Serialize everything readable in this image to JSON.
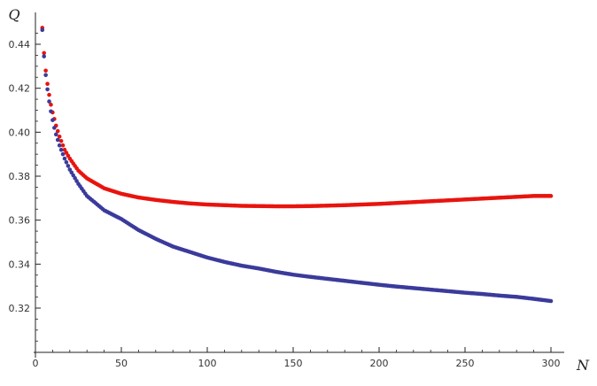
{
  "chart_data": {
    "type": "scatter",
    "title": "",
    "xlabel": "N",
    "ylabel": "Q",
    "xlim": [
      0,
      305
    ],
    "ylim": [
      0.3,
      0.45
    ],
    "x_ticks": [
      0,
      50,
      100,
      150,
      200,
      250,
      300
    ],
    "x_tick_labels": [
      "0",
      "50",
      "100",
      "150",
      "200",
      "250",
      "300"
    ],
    "y_ticks": [
      0.32,
      0.34,
      0.36,
      0.38,
      0.4,
      0.42,
      0.44
    ],
    "y_tick_labels": [
      "0.32",
      "0.34",
      "0.36",
      "0.38",
      "0.40",
      "0.42",
      "0.44"
    ],
    "grid": false,
    "legend": "none",
    "series": [
      {
        "color": "#e8140f",
        "x": [
          4,
          5,
          6,
          7,
          8,
          9,
          10,
          11,
          12,
          13,
          14,
          15,
          17,
          20,
          25,
          30,
          40,
          50,
          60,
          70,
          80,
          90,
          100,
          110,
          120,
          130,
          140,
          150,
          160,
          170,
          180,
          190,
          200,
          210,
          220,
          230,
          240,
          250,
          260,
          270,
          280,
          290,
          300
        ],
        "y": [
          0.4475,
          0.436,
          0.428,
          0.422,
          0.417,
          0.4125,
          0.409,
          0.406,
          0.403,
          0.4005,
          0.398,
          0.396,
          0.392,
          0.388,
          0.3825,
          0.379,
          0.3745,
          0.372,
          0.3703,
          0.3692,
          0.3683,
          0.3676,
          0.3671,
          0.3668,
          0.3665,
          0.3664,
          0.3663,
          0.3663,
          0.3664,
          0.3666,
          0.3668,
          0.3671,
          0.3674,
          0.3678,
          0.3682,
          0.3686,
          0.369,
          0.3694,
          0.3698,
          0.3702,
          0.3706,
          0.371,
          0.371
        ]
      },
      {
        "color": "#3b3b9c",
        "x": [
          4,
          5,
          6,
          7,
          8,
          9,
          10,
          11,
          12,
          13,
          14,
          15,
          17,
          20,
          25,
          30,
          40,
          50,
          60,
          70,
          80,
          90,
          100,
          110,
          120,
          130,
          140,
          150,
          160,
          170,
          180,
          190,
          200,
          210,
          220,
          230,
          240,
          250,
          260,
          270,
          280,
          290,
          300
        ],
        "y": [
          0.4465,
          0.4345,
          0.426,
          0.4195,
          0.414,
          0.4095,
          0.4055,
          0.402,
          0.399,
          0.3965,
          0.394,
          0.392,
          0.388,
          0.383,
          0.3765,
          0.371,
          0.3645,
          0.3605,
          0.3555,
          0.3515,
          0.348,
          0.3455,
          0.343,
          0.341,
          0.3393,
          0.338,
          0.3365,
          0.3352,
          0.3342,
          0.3333,
          0.3324,
          0.3315,
          0.3306,
          0.3298,
          0.3291,
          0.3284,
          0.3277,
          0.327,
          0.3264,
          0.3257,
          0.3251,
          0.3242,
          0.3232
        ]
      }
    ]
  }
}
